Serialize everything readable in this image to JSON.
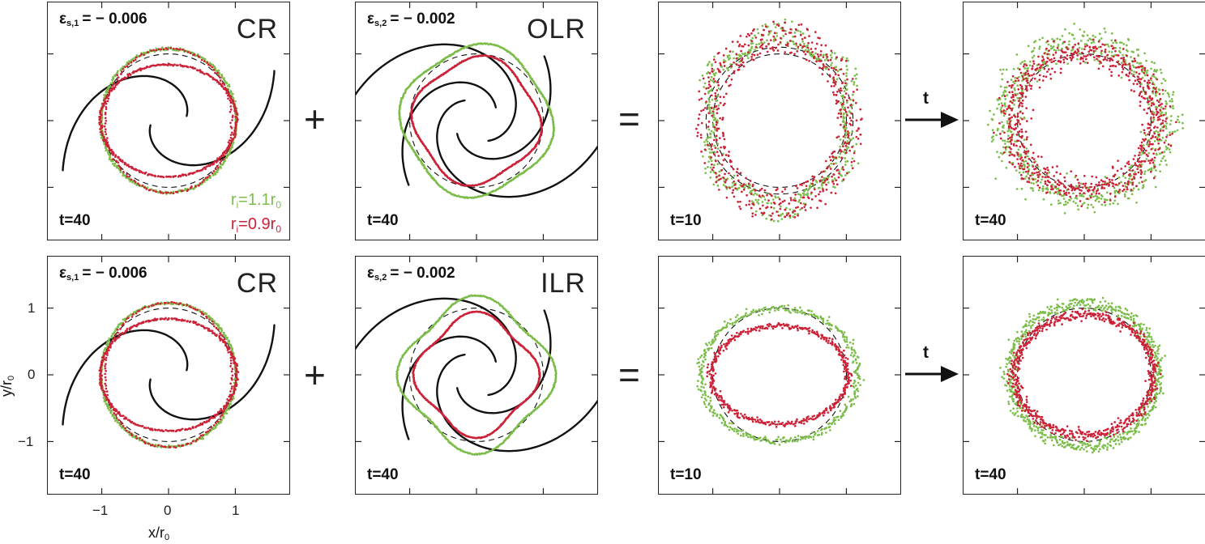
{
  "colors": {
    "green": "#7cbd4a",
    "red": "#cc2238",
    "arm": "#111111",
    "dash": "#111111"
  },
  "operators": {
    "plus": "+",
    "equals": "="
  },
  "arrow_label": "t",
  "rows": [
    {
      "panels": [
        {
          "eps_sym": "ε",
          "eps_sub": "s,1",
          "eps_val": "= − 0.006",
          "resonance": "CR",
          "time": "t=40",
          "kind": "cr"
        },
        {
          "eps_sym": "ε",
          "eps_sub": "s,2",
          "eps_val": "= − 0.002",
          "resonance": "OLR",
          "time": "t=40",
          "kind": "olr"
        },
        {
          "time": "t=10",
          "kind": "sum10a"
        },
        {
          "time": "t=40",
          "kind": "sum40a"
        }
      ]
    },
    {
      "panels": [
        {
          "eps_sym": "ε",
          "eps_sub": "s,1",
          "eps_val": "= − 0.006",
          "resonance": "CR",
          "time": "t=40",
          "kind": "cr"
        },
        {
          "eps_sym": "ε",
          "eps_sub": "s,2",
          "eps_val": "= − 0.002",
          "resonance": "ILR",
          "time": "t=40",
          "kind": "ilr"
        },
        {
          "time": "t=10",
          "kind": "sum10b"
        },
        {
          "time": "t=40",
          "kind": "sum40b"
        }
      ]
    }
  ],
  "legend": {
    "green_r": "r",
    "green_sub": "i",
    "green_val": "=1.1r",
    "green_sub2": "0",
    "red_r": "r",
    "red_sub": "i",
    "red_val": "=0.9r",
    "red_sub2": "0"
  },
  "axes": {
    "yticks": [
      "1",
      "0",
      "−1"
    ],
    "xticks": [
      "−1",
      "0",
      "1"
    ],
    "ylabel": "y/r",
    "ylabel_sub": "0",
    "xlabel": "x/r",
    "xlabel_sub": "0"
  }
}
